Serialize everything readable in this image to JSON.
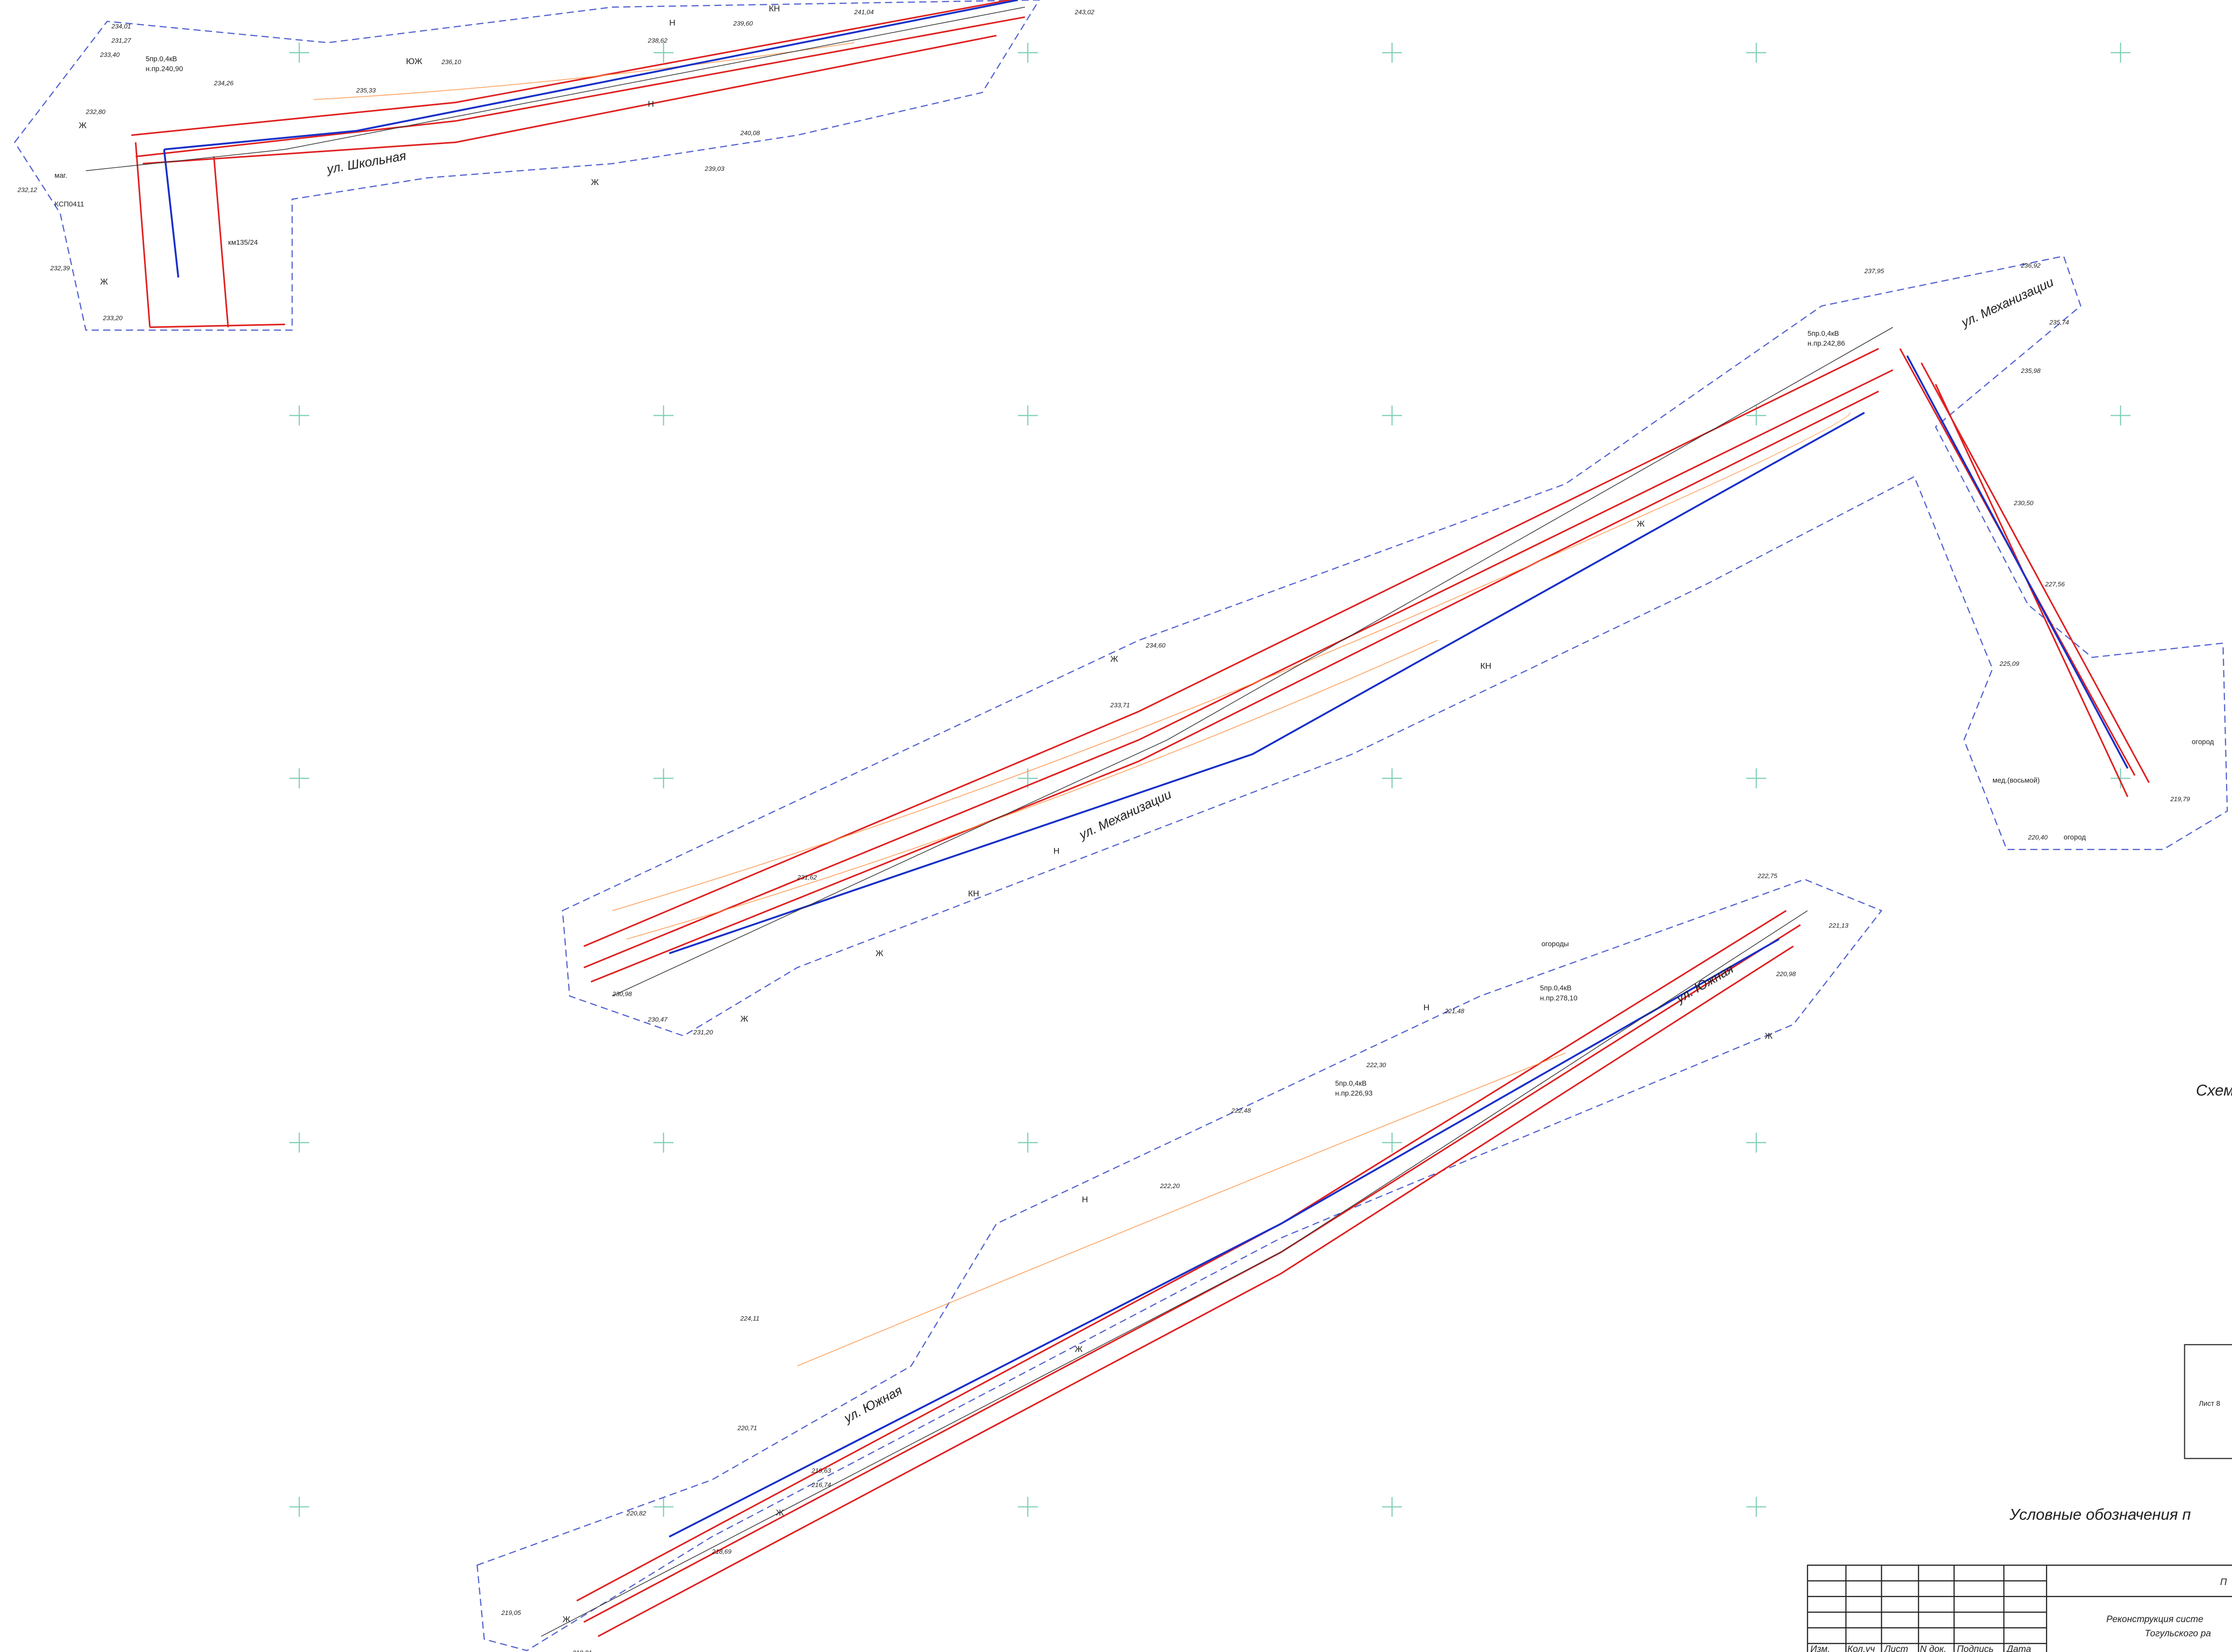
{
  "streets": [
    "ул. Школьная",
    "ул. Механизации",
    "ул. Южная",
    "ул. Механизации",
    "ул. Южная"
  ],
  "notes": [
    "маг.",
    "КСП0411",
    "км135/24",
    "огород",
    "огороды",
    "огород",
    "мед.(восьмой)",
    "5пр.0,4кВ",
    "н.пр.240,90",
    "5пр.0,4кВ",
    "н.пр.242,86",
    "5пр.0,4кВ",
    "н.пр.278,10",
    "5пр.0,4кВ",
    "н.пр.226,93"
  ],
  "elevations": [
    "234,01",
    "231,27",
    "233,40",
    "232,80",
    "232,12",
    "232,39",
    "233,20",
    "234,26",
    "235,33",
    "236,10",
    "238,62",
    "239,60",
    "241,04",
    "243,02",
    "240,08",
    "239,03",
    "237,95",
    "236,92",
    "235,74",
    "235,98",
    "230,50",
    "227,56",
    "225,09",
    "219,79",
    "220,40",
    "234,60",
    "233,71",
    "231,62",
    "230,98",
    "230,47",
    "231,20",
    "221,48",
    "222,30",
    "222,48",
    "222,20",
    "224,11",
    "220,71",
    "220,82",
    "219,05",
    "218,81",
    "222,75",
    "221,13",
    "220,98",
    "218,69",
    "219,63",
    "216,74"
  ],
  "lots": [
    "Ж",
    "Н",
    "КН",
    "ЮЖ",
    "Ж",
    "Н",
    "Ж",
    "Ж",
    "КН",
    "Н",
    "Ж",
    "Ж",
    "Ж",
    "Н",
    "Ж",
    "КН",
    "Ж",
    "Ж",
    "Н",
    "Ж"
  ],
  "side_texts": {
    "scheme": "Схем",
    "sheet": "Лист 8",
    "legend": "Условные обозначения п"
  },
  "title_block": {
    "head": "П",
    "project": "Реконструкция систе",
    "district": "Тогульского ра",
    "columns": [
      "Изм.",
      "Кол.уч",
      "Лист",
      "N док.",
      "Подпись",
      "Дата"
    ]
  }
}
